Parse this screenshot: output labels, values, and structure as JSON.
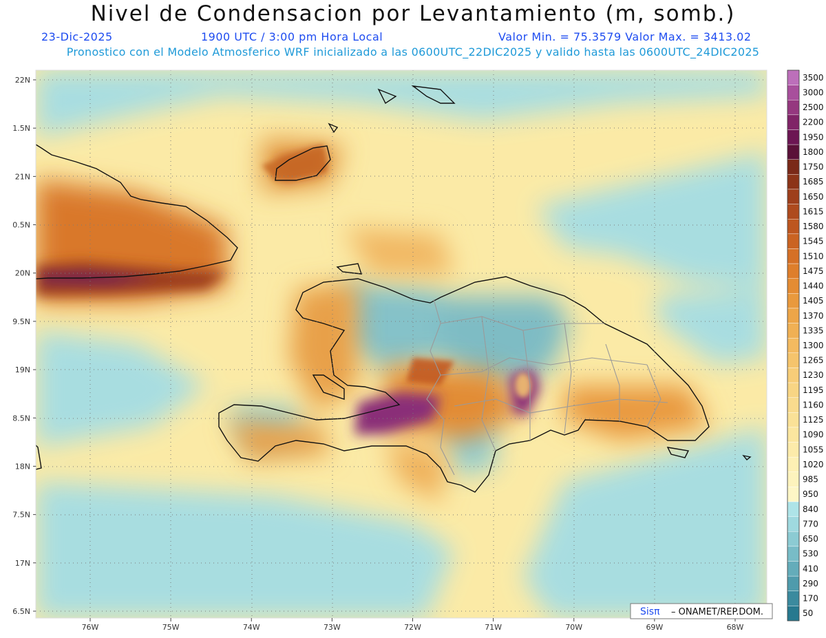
{
  "header": {
    "title": "Nivel de Condensacion por Levantamiento (m, somb.)",
    "date": "23-Dic-2025",
    "time": "1900 UTC / 3:00 pm Hora Local",
    "minmax": "Valor Min. = 75.3579   Valor Max. = 3413.02",
    "subtitle": "Pronostico con el Modelo Atmosferico WRF inicializado a las 0600UTC_22DIC2025 y valido hasta las  0600UTC_24DIC2025"
  },
  "lat_labels": [
    "22N",
    "1.5N",
    "21N",
    "0.5N",
    "20N",
    "9.5N",
    "19N",
    "8.5N",
    "18N",
    "7.5N",
    "17N",
    "6.5N"
  ],
  "lon_labels": [
    "76W",
    "75W",
    "74W",
    "73W",
    "72W",
    "71W",
    "70W",
    "69W",
    "68W"
  ],
  "colorbar": [
    {
      "label": "3500",
      "color": "#bc6fba"
    },
    {
      "label": "3000",
      "color": "#a84f9c"
    },
    {
      "label": "2500",
      "color": "#95387f"
    },
    {
      "label": "2200",
      "color": "#802467"
    },
    {
      "label": "1950",
      "color": "#6c1653"
    },
    {
      "label": "1800",
      "color": "#5a1138"
    },
    {
      "label": "1750",
      "color": "#7a2918"
    },
    {
      "label": "1685",
      "color": "#8c3418"
    },
    {
      "label": "1650",
      "color": "#9e3f1b"
    },
    {
      "label": "1615",
      "color": "#ae4a1d"
    },
    {
      "label": "1580",
      "color": "#bd561f"
    },
    {
      "label": "1545",
      "color": "#ca6322"
    },
    {
      "label": "1510",
      "color": "#d57026"
    },
    {
      "label": "1475",
      "color": "#de7e2b"
    },
    {
      "label": "1440",
      "color": "#e48c33"
    },
    {
      "label": "1405",
      "color": "#e9993d"
    },
    {
      "label": "1370",
      "color": "#eda548"
    },
    {
      "label": "1335",
      "color": "#f0b054"
    },
    {
      "label": "1300",
      "color": "#f3ba60"
    },
    {
      "label": "1265",
      "color": "#f5c46c"
    },
    {
      "label": "1230",
      "color": "#f7cd78"
    },
    {
      "label": "1195",
      "color": "#f8d584"
    },
    {
      "label": "1160",
      "color": "#f9db8e"
    },
    {
      "label": "1125",
      "color": "#fae197"
    },
    {
      "label": "1090",
      "color": "#fbe69f"
    },
    {
      "label": "1055",
      "color": "#fcebaa"
    },
    {
      "label": "1020",
      "color": "#fdf0b4"
    },
    {
      "label": "985",
      "color": "#fdf3bd"
    },
    {
      "label": "950",
      "color": "#fef6c6"
    },
    {
      "label": "840",
      "color": "#aee4e8"
    },
    {
      "label": "770",
      "color": "#9fd9df"
    },
    {
      "label": "650",
      "color": "#8ccbd3"
    },
    {
      "label": "530",
      "color": "#78bcc7"
    },
    {
      "label": "410",
      "color": "#64acba"
    },
    {
      "label": "290",
      "color": "#4f9bac"
    },
    {
      "label": "170",
      "color": "#3b8a9e"
    },
    {
      "label": "50",
      "color": "#27798f"
    }
  ],
  "credit": {
    "brand": "Sisπ",
    "org": "– ONAMET/REP.DOM."
  }
}
